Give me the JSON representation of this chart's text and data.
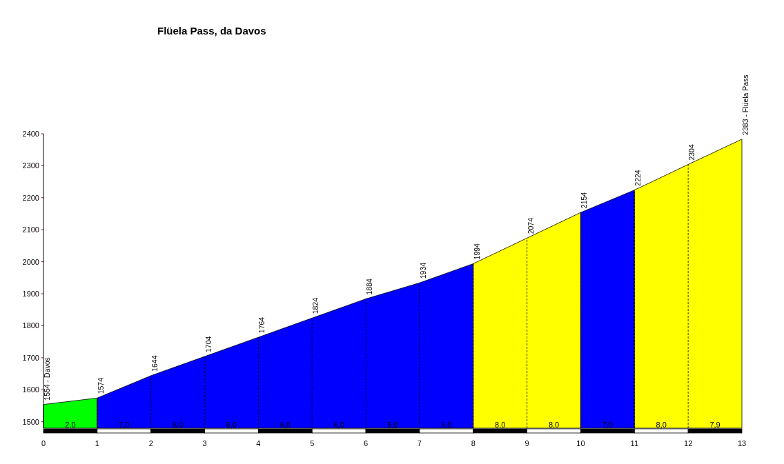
{
  "chart_data": {
    "type": "area",
    "title": "Flüela Pass, da Davos",
    "xlim": [
      0,
      13
    ],
    "xticks": [
      0,
      1,
      2,
      3,
      4,
      5,
      6,
      7,
      8,
      9,
      10,
      11,
      12,
      13
    ],
    "ylim": [
      1480,
      2400
    ],
    "yticks": [
      1500,
      1600,
      1700,
      1800,
      1900,
      2000,
      2100,
      2200,
      2300,
      2400
    ],
    "grid": "x",
    "series": [
      {
        "color": "#00ff00",
        "x": [
          0,
          1
        ],
        "values": [
          1554,
          1574
        ],
        "value_labels": [
          "1554 - Davos",
          "1574"
        ]
      },
      {
        "color": "#0000ff",
        "x": [
          1,
          2,
          3,
          4,
          5,
          6,
          7,
          8
        ],
        "values": [
          1574,
          1644,
          1704,
          1764,
          1824,
          1884,
          1934,
          1994
        ],
        "value_labels": [
          null,
          "1644",
          "1704",
          "1764",
          "1824",
          "1884",
          "1934",
          "1994"
        ]
      },
      {
        "color": "#ffff00",
        "x": [
          8,
          9,
          10
        ],
        "values": [
          1994,
          2074,
          2154
        ],
        "value_labels": [
          null,
          "2074",
          "2154"
        ]
      },
      {
        "color": "#0000ff",
        "x": [
          10,
          11
        ],
        "values": [
          2154,
          2224
        ],
        "value_labels": [
          null,
          "2224"
        ]
      },
      {
        "color": "#ffff00",
        "x": [
          11,
          12,
          13
        ],
        "values": [
          2224,
          2304,
          2383
        ],
        "value_labels": [
          null,
          "2304",
          "2383 - Flüela Pass"
        ]
      }
    ],
    "annotations": [
      {
        "text": "2,0",
        "x": 0.5,
        "y": 1490
      },
      {
        "text": "7,0",
        "x": 1.5,
        "y": 1490
      },
      {
        "text": "6,0",
        "x": 2.5,
        "y": 1490
      },
      {
        "text": "6,0",
        "x": 3.5,
        "y": 1490
      },
      {
        "text": "6,0",
        "x": 4.5,
        "y": 1490
      },
      {
        "text": "6,0",
        "x": 5.5,
        "y": 1490
      },
      {
        "text": "5,0",
        "x": 6.5,
        "y": 1490
      },
      {
        "text": "6,0",
        "x": 7.5,
        "y": 1490
      },
      {
        "text": "8,0",
        "x": 8.5,
        "y": 1490
      },
      {
        "text": "8,0",
        "x": 9.5,
        "y": 1490
      },
      {
        "text": "7,0",
        "x": 10.5,
        "y": 1490
      },
      {
        "text": "8,0",
        "x": 11.5,
        "y": 1490
      },
      {
        "text": "7,9",
        "x": 12.5,
        "y": 1490
      }
    ]
  }
}
